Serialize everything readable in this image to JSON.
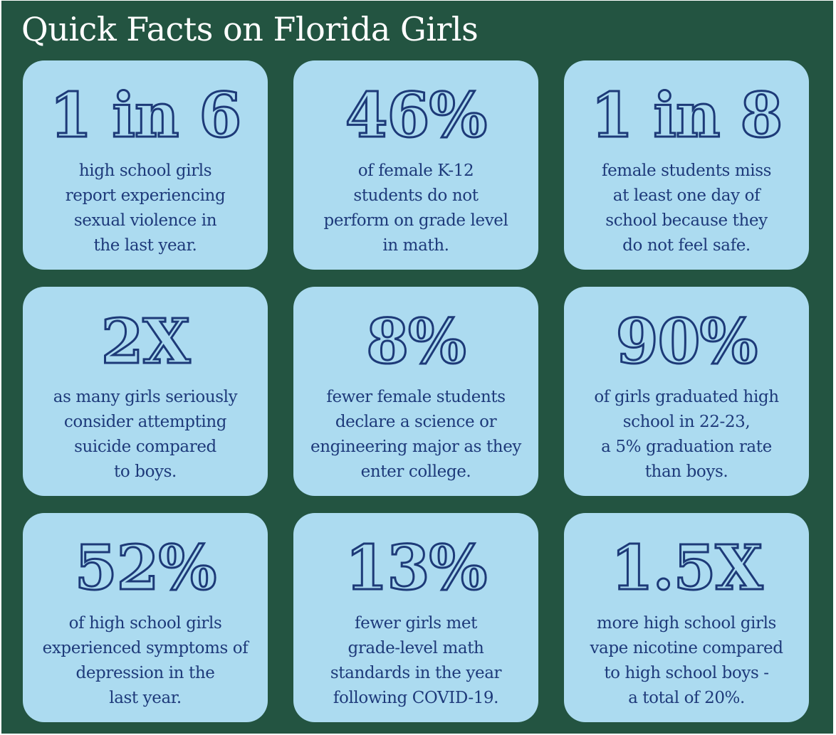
{
  "title": "Quick Facts on Florida Girls",
  "facts": [
    {
      "stat": "1 in 6",
      "lines": [
        "high school girls",
        "report experiencing",
        "sexual violence in",
        "the last year."
      ]
    },
    {
      "stat": "46%",
      "lines": [
        "of female K-12",
        "students do not",
        "perform on grade level",
        "in math."
      ]
    },
    {
      "stat": "1 in 8",
      "lines": [
        "female students miss",
        "at least one day of",
        "school because they",
        "do not feel safe."
      ]
    },
    {
      "stat": "2X",
      "lines": [
        "as many girls seriously",
        "consider attempting",
        "suicide compared",
        "to boys."
      ]
    },
    {
      "stat": "8%",
      "lines": [
        "fewer female students",
        "declare a science or",
        "engineering major as they",
        "enter college."
      ]
    },
    {
      "stat": "90%",
      "lines": [
        "of girls graduated high",
        "school in 22-23,",
        "a 5% graduation rate",
        "than boys."
      ]
    },
    {
      "stat": "52%",
      "lines": [
        "of high school girls",
        "experienced symptoms of",
        "depression in the",
        "last year."
      ]
    },
    {
      "stat": "13%",
      "lines": [
        "fewer girls met",
        "grade-level math",
        "standards in the year",
        "following COVID-19."
      ]
    },
    {
      "stat": "1.5X",
      "lines": [
        "more high school girls",
        "vape nicotine compared",
        "to high school boys -",
        "a total of 20%."
      ]
    }
  ],
  "colors": {
    "background": "#235441",
    "card": "#acdbf0",
    "text": "#1e3a7a",
    "title": "#ffffff"
  }
}
